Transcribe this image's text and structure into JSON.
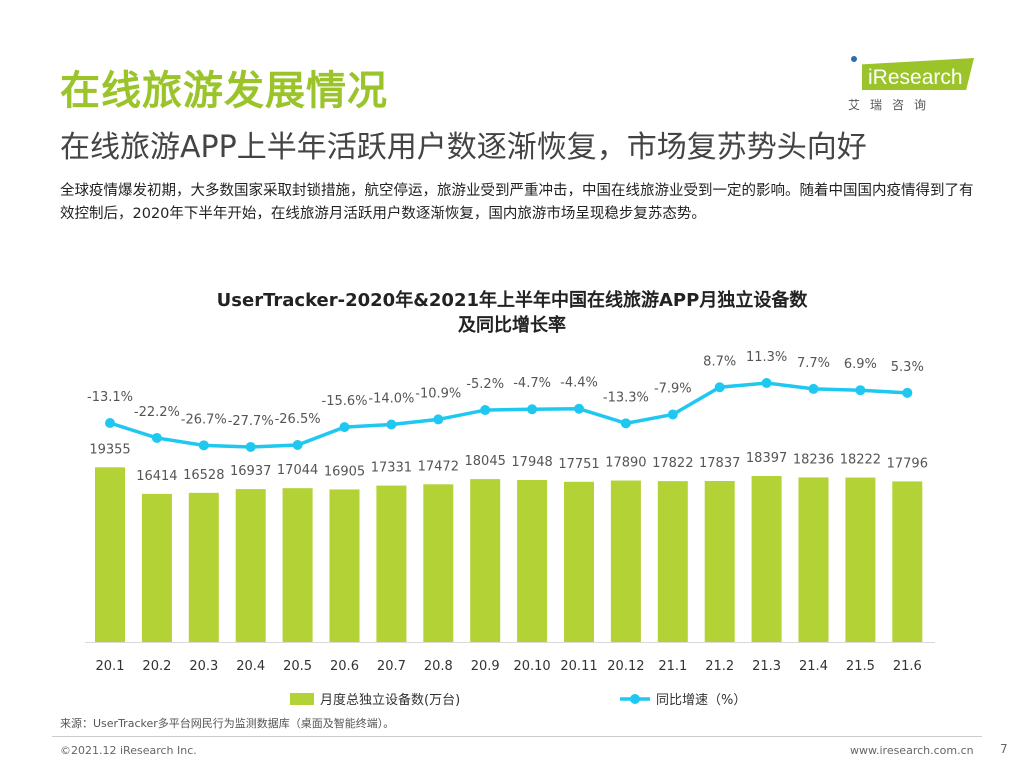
{
  "header": {
    "title": "在线旅游发展情况",
    "subtitle": "在线旅游APP上半年活跃用户数逐渐恢复，市场复苏势头向好",
    "description": "全球疫情爆发初期，大多数国家采取封锁措施，航空停运，旅游业受到严重冲击，中国在线旅游业受到一定的影响。随着中国国内疫情得到了有效控制后，2020年下半年开始，在线旅游月活跃用户数逐渐恢复，国内旅游市场呈现稳步复苏态势。"
  },
  "logo": {
    "text": "iResearch",
    "cn": "艾瑞咨询",
    "color": "#9ac42a"
  },
  "chart_data": {
    "type": "bar+line",
    "title": "UserTracker-2020年&2021年上半年中国在线旅游APP月独立设备数及同比增长率",
    "categories": [
      "20.1",
      "20.2",
      "20.3",
      "20.4",
      "20.5",
      "20.6",
      "20.7",
      "20.8",
      "20.9",
      "20.10",
      "20.11",
      "20.12",
      "21.1",
      "21.2",
      "21.3",
      "21.4",
      "21.5",
      "21.6"
    ],
    "series": [
      {
        "name": "月度总独立设备数(万台)",
        "type": "bar",
        "color": "#b2d235",
        "values": [
          19355,
          16414,
          16528,
          16937,
          17044,
          16905,
          17331,
          17472,
          18045,
          17948,
          17751,
          17890,
          17822,
          17837,
          18397,
          18236,
          18222,
          17796
        ]
      },
      {
        "name": "同比增速（%）",
        "type": "line",
        "color": "#1ec8f0",
        "values": [
          -13.1,
          -22.2,
          -26.7,
          -27.7,
          -26.5,
          -15.6,
          -14.0,
          -10.9,
          -5.2,
          -4.7,
          -4.4,
          -13.3,
          -7.9,
          8.7,
          11.3,
          7.7,
          6.9,
          5.3
        ]
      }
    ],
    "legend": "bottom",
    "grid": false
  },
  "footer": {
    "source": "来源：UserTracker多平台网民行为监测数据库（桌面及智能终端）。",
    "copyright": "©2021.12 iResearch Inc.",
    "site": "www.iresearch.com.cn",
    "page": "7"
  }
}
